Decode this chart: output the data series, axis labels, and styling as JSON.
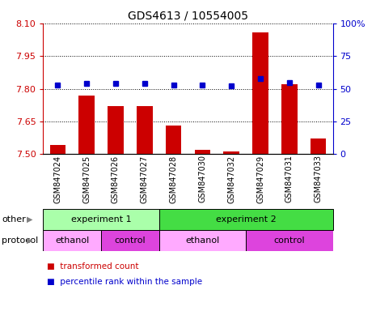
{
  "title": "GDS4613 / 10554005",
  "samples": [
    "GSM847024",
    "GSM847025",
    "GSM847026",
    "GSM847027",
    "GSM847028",
    "GSM847030",
    "GSM847032",
    "GSM847029",
    "GSM847031",
    "GSM847033"
  ],
  "bar_values": [
    7.54,
    7.77,
    7.72,
    7.72,
    7.63,
    7.52,
    7.51,
    8.06,
    7.82,
    7.57
  ],
  "dot_values": [
    53,
    54,
    54,
    54,
    53,
    53,
    52,
    58,
    55,
    53
  ],
  "ylim_left": [
    7.5,
    8.1
  ],
  "ylim_right": [
    0,
    100
  ],
  "yticks_left": [
    7.5,
    7.65,
    7.8,
    7.95,
    8.1
  ],
  "yticks_right": [
    0,
    25,
    50,
    75,
    100
  ],
  "bar_color": "#cc0000",
  "dot_color": "#0000cc",
  "axis_left_color": "#cc0000",
  "axis_right_color": "#0000cc",
  "other_label": "other",
  "protocol_label": "protocol",
  "experiment1_label": "experiment 1",
  "experiment2_label": "experiment 2",
  "ethanol_label": "ethanol",
  "control_label": "control",
  "exp1_color": "#aaffaa",
  "exp2_color": "#44dd44",
  "ethanol_color": "#ffaaff",
  "control_color": "#dd44dd",
  "legend_bar_label": "transformed count",
  "legend_dot_label": "percentile rank within the sample"
}
